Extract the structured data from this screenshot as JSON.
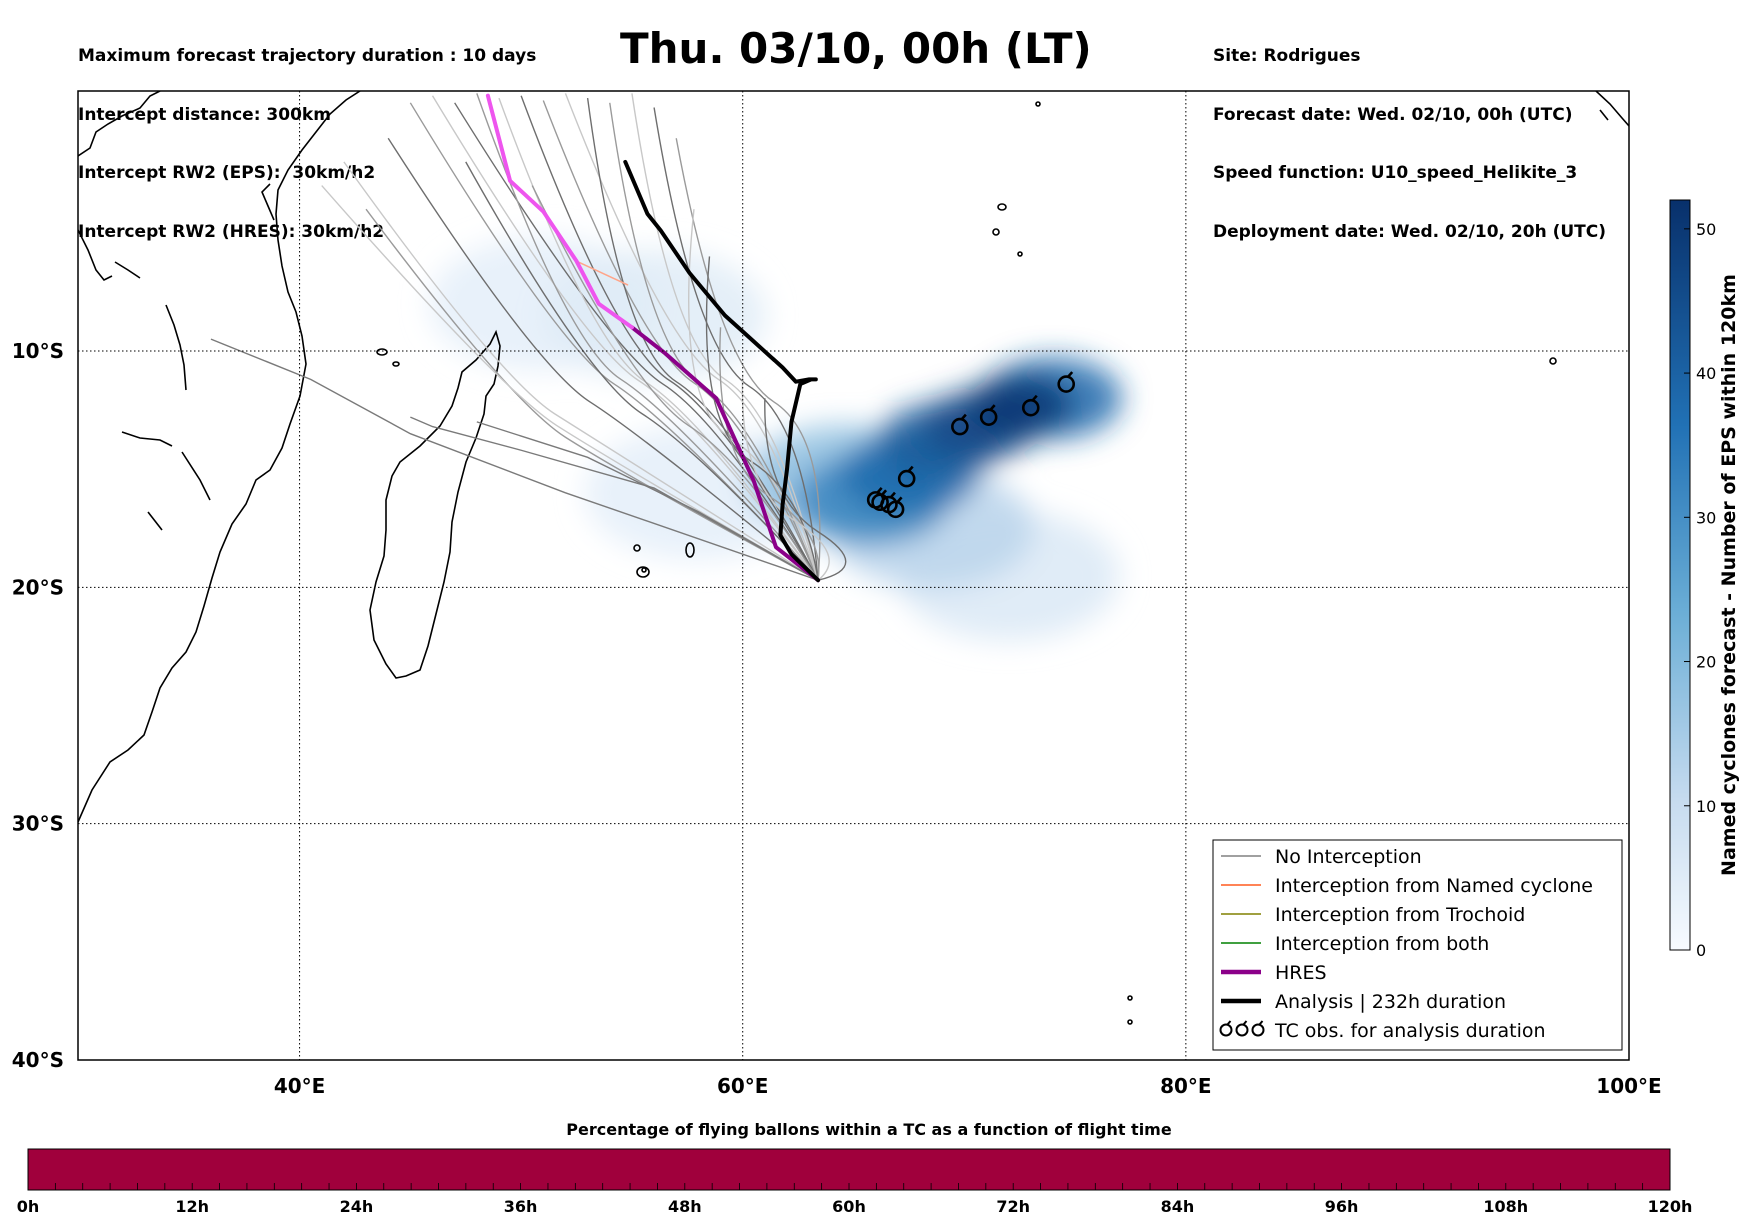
{
  "header_left": [
    "Maximum forecast trajectory duration : 10 days",
    "Intercept distance: 300km",
    "Intercept RW2 (EPS):  30km/h2",
    "Intercept RW2 (HRES): 30km/h2"
  ],
  "header_right": [
    "Site: Rodrigues",
    "Forecast date: Wed. 02/10, 00h (UTC)",
    "Speed function: U10_speed_Helikite_3",
    "Deployment date: Wed. 02/10, 20h (UTC)"
  ],
  "title": "Thu. 03/10, 00h (LT)",
  "map": {
    "lon_range": [
      30,
      100
    ],
    "lat_range": [
      -40,
      1
    ],
    "lon_ticks": [
      {
        "lon": 40,
        "label": "40°E"
      },
      {
        "lon": 60,
        "label": "60°E"
      },
      {
        "lon": 80,
        "label": "80°E"
      },
      {
        "lon": 100,
        "label": "100°E"
      }
    ],
    "lat_ticks": [
      {
        "lat": -10,
        "label": "10°S"
      },
      {
        "lat": -20,
        "label": "20°S"
      },
      {
        "lat": -30,
        "label": "30°S"
      },
      {
        "lat": -40,
        "label": "40°S"
      }
    ],
    "grid": "dotted"
  },
  "colorbar": {
    "label": "Named cyclones forecast - Number of EPS within 120km",
    "range": [
      0,
      52
    ],
    "ticks": [
      "0",
      "10",
      "20",
      "30",
      "40",
      "50"
    ],
    "tick_values": [
      0,
      10,
      20,
      30,
      40,
      50
    ],
    "colormap": "Blues"
  },
  "legend": {
    "placement": "lower-right",
    "items": [
      {
        "label": "No Interception",
        "color": "#808080",
        "style": "thin"
      },
      {
        "label": "Interception from Named cyclone",
        "color": "#ff5a1e",
        "style": "thin"
      },
      {
        "label": "Interception from Trochoid",
        "color": "#808000",
        "style": "thin"
      },
      {
        "label": "Interception from both",
        "color": "#008000",
        "style": "thin"
      },
      {
        "label": "HRES",
        "color": "#8b0089",
        "style": "thick"
      },
      {
        "label": "Analysis | 232h duration",
        "color": "#000000",
        "style": "thick"
      },
      {
        "label": "TC obs. for analysis duration",
        "color": "#000000",
        "style": "tc-symbol"
      }
    ]
  },
  "bottom_bar": {
    "title": "Percentage of flying ballons within a TC as a function of flight time",
    "color": "#a0003c",
    "ticks": [
      "0h",
      "12h",
      "24h",
      "36h",
      "48h",
      "60h",
      "72h",
      "84h",
      "96h",
      "108h",
      "120h"
    ]
  },
  "chart_data": {
    "type": "map",
    "release_site": {
      "lon": 63.4,
      "lat": -19.7
    },
    "analysis_track": [
      [
        63.4,
        -19.7
      ],
      [
        62.2,
        -18.6
      ],
      [
        61.7,
        -17.8
      ],
      [
        61.8,
        -16.5
      ],
      [
        62.0,
        -15.0
      ],
      [
        62.2,
        -13.0
      ],
      [
        62.6,
        -11.4
      ],
      [
        63.1,
        -11.2
      ],
      [
        63.3,
        -11.2
      ],
      [
        63.0,
        -11.2
      ],
      [
        62.4,
        -11.3
      ],
      [
        61.8,
        -10.7
      ],
      [
        60.5,
        -9.6
      ],
      [
        59.2,
        -8.5
      ],
      [
        57.6,
        -6.7
      ],
      [
        56.3,
        -4.9
      ],
      [
        55.7,
        -4.2
      ],
      [
        54.7,
        -2.0
      ]
    ],
    "hres_track": [
      [
        63.4,
        -19.7
      ],
      [
        61.5,
        -18.3
      ],
      [
        60.5,
        -15.5
      ],
      [
        58.8,
        -12.0
      ],
      [
        56.5,
        -10.1
      ],
      [
        55.0,
        -9.0
      ],
      [
        53.5,
        -8.0
      ],
      [
        52.5,
        -6.2
      ],
      [
        51.0,
        -4.1
      ],
      [
        49.5,
        -2.8
      ],
      [
        48.5,
        0.8
      ]
    ],
    "interception_named_track": [
      [
        52.5,
        -6.2
      ],
      [
        54.8,
        -7.2
      ]
    ],
    "tc_obs": [
      [
        74.6,
        -11.4
      ],
      [
        73.0,
        -12.4
      ],
      [
        71.1,
        -12.8
      ],
      [
        69.8,
        -13.2
      ],
      [
        67.4,
        -15.4
      ],
      [
        66.9,
        -16.7
      ],
      [
        66.6,
        -16.5
      ],
      [
        66.2,
        -16.4
      ],
      [
        66.0,
        -16.3
      ]
    ],
    "eps_density_blobs": [
      {
        "lon": 72.5,
        "lat": -12.3,
        "value": 50
      },
      {
        "lon": 70.8,
        "lat": -13.1,
        "value": 46
      },
      {
        "lon": 69.0,
        "lat": -13.8,
        "value": 42
      },
      {
        "lon": 67.5,
        "lat": -15.2,
        "value": 38
      },
      {
        "lon": 65.8,
        "lat": -16.3,
        "value": 32
      },
      {
        "lon": 74.0,
        "lat": -12.0,
        "value": 38
      },
      {
        "lon": 64.5,
        "lat": -15.5,
        "value": 18
      },
      {
        "lon": 68.5,
        "lat": -17.5,
        "value": 12
      },
      {
        "lon": 72.0,
        "lat": -19.5,
        "value": 6
      },
      {
        "lon": 56.0,
        "lat": -8.5,
        "value": 5
      },
      {
        "lon": 51.0,
        "lat": -8.0,
        "value": 4
      },
      {
        "lon": 58.0,
        "lat": -16.0,
        "value": 4
      }
    ]
  }
}
